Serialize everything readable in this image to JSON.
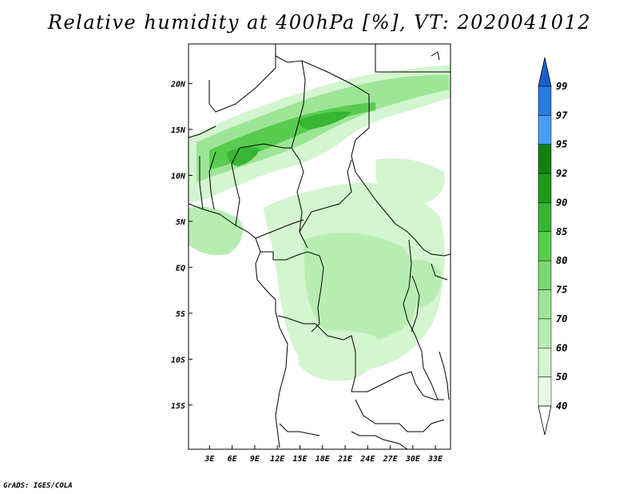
{
  "title": "Relative humidity at 400hPa [%], VT: 2020041012",
  "footer": "GrADS: IGES/COLA",
  "map": {
    "lat_labels": [
      "20N",
      "15N",
      "10N",
      "5N",
      "EQ",
      "5S",
      "10S",
      "15S"
    ],
    "lat_values": [
      20,
      15,
      10,
      5,
      0,
      -5,
      -10,
      -15
    ],
    "lon_labels": [
      "3E",
      "6E",
      "9E",
      "12E",
      "15E",
      "18E",
      "21E",
      "24E",
      "27E",
      "30E",
      "33E"
    ],
    "lon_values": [
      3,
      6,
      9,
      12,
      15,
      18,
      21,
      24,
      27,
      30,
      33
    ],
    "lon_range": [
      0.2,
      35
    ],
    "lat_range": [
      -19.8,
      24.3
    ]
  },
  "colorbar": {
    "labels": [
      "99",
      "97",
      "95",
      "92",
      "90",
      "85",
      "80",
      "75",
      "70",
      "60",
      "50",
      "40"
    ],
    "levels": [
      40,
      50,
      60,
      70,
      75,
      80,
      85,
      90,
      92,
      95,
      97,
      99
    ],
    "colors": [
      "#ffffff",
      "#e8fbe6",
      "#d3f5cf",
      "#b8edb2",
      "#9ce596",
      "#7ad872",
      "#58cc4f",
      "#38b532",
      "#1f9b1c",
      "#128012",
      "#4a9df0",
      "#2a7ae0",
      "#1a5fcf"
    ]
  }
}
